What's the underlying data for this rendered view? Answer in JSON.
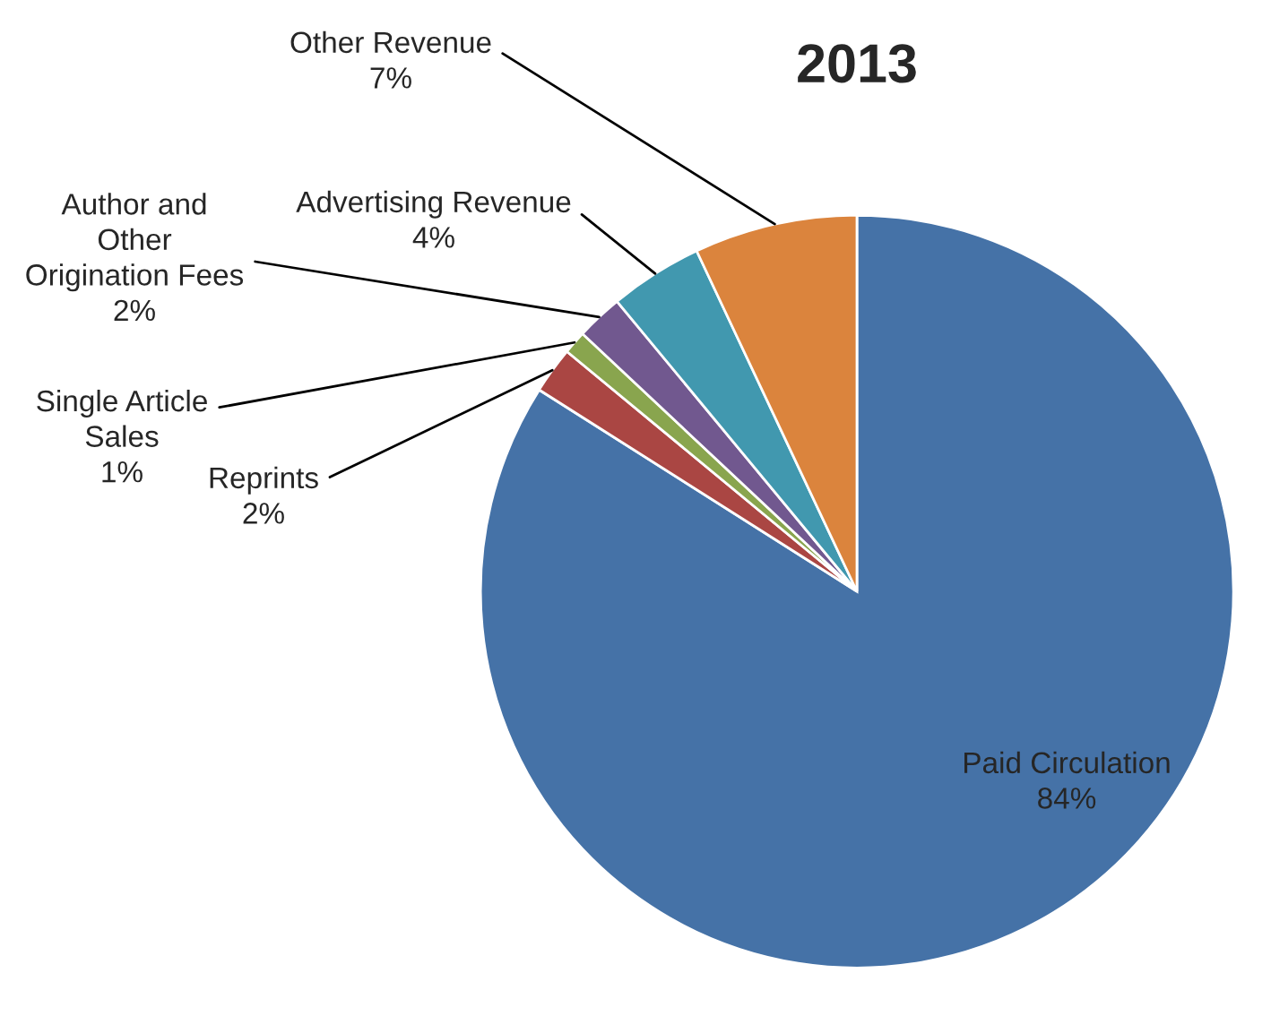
{
  "chart_data": {
    "type": "pie",
    "title": "2013",
    "categories": [
      "Paid Circulation",
      "Reprints",
      "Single Article\nSales",
      "Author and\nOther\nOrigination Fees",
      "Advertising Revenue",
      "Other Revenue"
    ],
    "values": [
      84,
      2,
      1,
      2,
      4,
      7
    ],
    "value_labels": [
      "84%",
      "2%",
      "1%",
      "2%",
      "4%",
      "7%"
    ],
    "colors": [
      "#4572a7",
      "#aa4643",
      "#89a54e",
      "#71588f",
      "#4198af",
      "#db843d"
    ],
    "legend": false
  }
}
